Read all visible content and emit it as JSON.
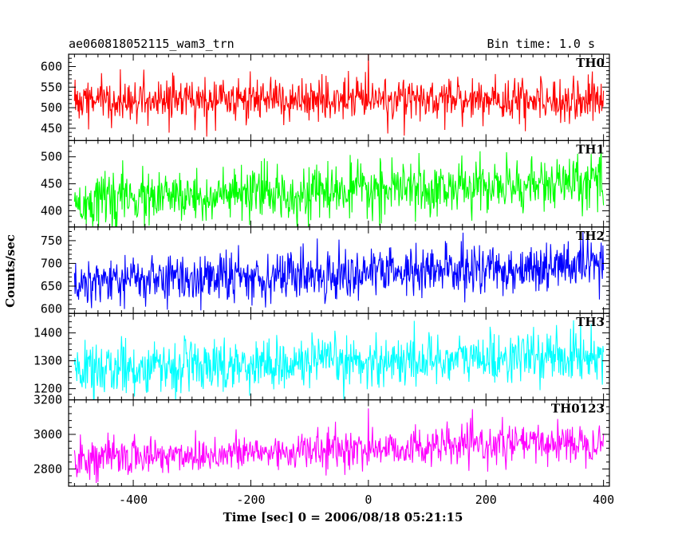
{
  "chart_data": {
    "type": "line",
    "title_left": "ae060818052115_wam3_trn",
    "title_right": "Bin time: 1.0 s",
    "xlabel": "Time [sec] 0 = 2006/08/18 05:21:15",
    "ylabel": "Counts/sec",
    "xlim": [
      -510,
      410
    ],
    "xticks": [
      -400,
      -200,
      0,
      200,
      400
    ],
    "x_range": [
      -500,
      400
    ],
    "grid": false,
    "panels": [
      {
        "name": "TH0",
        "color": "#ff0000",
        "ylim": [
          420,
          630
        ],
        "yticks": [
          450,
          500,
          550,
          600
        ],
        "mean_start": 520,
        "mean_end": 520,
        "noise": 25,
        "spike_at": 0,
        "spike_value": 630
      },
      {
        "name": "TH1",
        "color": "#00ff00",
        "ylim": [
          370,
          530
        ],
        "yticks": [
          400,
          450,
          500
        ],
        "mean_start": 418,
        "mean_end": 452,
        "noise": 24,
        "spike_at": null,
        "spike_value": null
      },
      {
        "name": "TH2",
        "color": "#0000ff",
        "ylim": [
          590,
          780
        ],
        "yticks": [
          600,
          650,
          700,
          750
        ],
        "mean_start": 660,
        "mean_end": 695,
        "noise": 28,
        "spike_at": null,
        "spike_value": null
      },
      {
        "name": "TH3",
        "color": "#00ffff",
        "ylim": [
          1160,
          1470
        ],
        "yticks": [
          1200,
          1300,
          1400
        ],
        "mean_start": 1270,
        "mean_end": 1320,
        "noise": 45,
        "spike_at": null,
        "spike_value": null
      },
      {
        "name": "TH0123",
        "color": "#ff00ff",
        "ylim": [
          2700,
          3200
        ],
        "yticks": [
          2800,
          3000,
          3200
        ],
        "mean_start": 2860,
        "mean_end": 2960,
        "noise": 55,
        "spike_at": 0,
        "spike_value": 3150
      }
    ]
  }
}
